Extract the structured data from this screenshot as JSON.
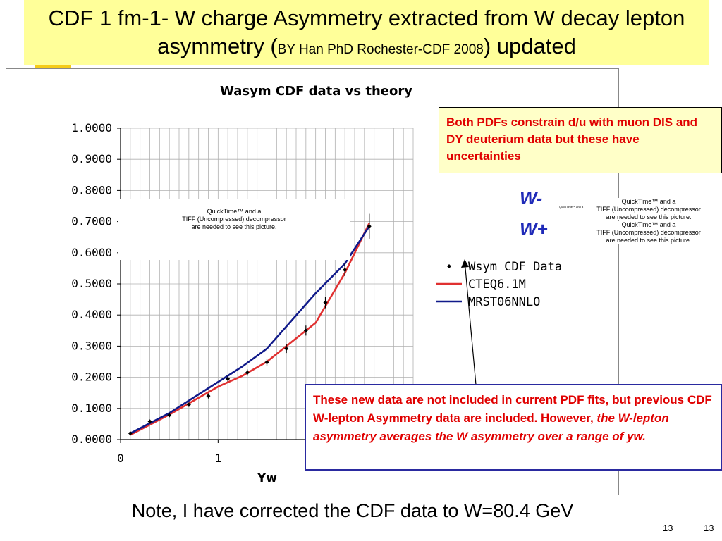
{
  "slide": {
    "title_part1": "CDF 1 fm-1- W charge Asymmetry extracted from W decay lepton asymmetry (",
    "title_small": "BY Han PhD Rochester-CDF 2008",
    "title_part2": ") updated",
    "note": "Note, I have corrected the CDF data to W=80.4 GeV",
    "page_number_left": "13",
    "page_number_right": "13",
    "w_minus_label": "W-",
    "w_plus_label": "W+",
    "small_label": "QuickTime™ and a"
  },
  "red_box": {
    "text": "Both PDFs constrain d/u with muon DIS and DY deuterium data but these have uncertainties"
  },
  "blue_box": {
    "t1": "These new data are not included in current PDF fits, but previous CDF ",
    "t2": "W-lepton",
    "t3": " Asymmetry data are included. However, ",
    "t4": "the ",
    "t5": "W-lepton",
    "t6": " asymmetry averages the W asymmetry over a range of yw."
  },
  "quicktime": {
    "line1": "QuickTime™ and a",
    "line2": "TIFF (Uncompressed) decompressor",
    "line3": "are needed to see this picture."
  },
  "quicktime_right_top": {
    "line1": "QuickTime™ and a",
    "line2": "TIFF (Uncompressed) decompressor",
    "line3": "are needed to see this picture."
  },
  "colors": {
    "data": "#000000",
    "cteq": "#e03030",
    "mrst": "#101a8a",
    "grid": "#b0b0b0"
  },
  "chart_data": {
    "type": "line",
    "title": "Wasym CDF data vs theory",
    "xlabel": "Yw",
    "ylabel": "",
    "xlim": [
      0,
      3
    ],
    "ylim": [
      0,
      1.0
    ],
    "x_ticks": [
      0,
      1
    ],
    "y_ticks": [
      "0.0000",
      "0.1000",
      "0.2000",
      "0.3000",
      "0.4000",
      "0.5000",
      "0.6000",
      "0.7000",
      "0.8000",
      "0.9000",
      "1.0000"
    ],
    "grid": true,
    "legend_position": "right",
    "series": [
      {
        "name": "Wsym CDF Data",
        "kind": "points",
        "x": [
          0.1,
          0.3,
          0.5,
          0.7,
          0.9,
          1.1,
          1.3,
          1.5,
          1.7,
          1.9,
          2.1,
          2.3,
          2.55
        ],
        "y": [
          0.02,
          0.058,
          0.078,
          0.112,
          0.14,
          0.195,
          0.215,
          0.248,
          0.292,
          0.35,
          0.44,
          0.545,
          0.685
        ],
        "err": [
          0.006,
          0.006,
          0.006,
          0.007,
          0.008,
          0.009,
          0.01,
          0.012,
          0.014,
          0.016,
          0.018,
          0.02,
          0.04
        ]
      },
      {
        "name": "CTEQ6.1M",
        "kind": "line",
        "x": [
          0.1,
          0.5,
          1.0,
          1.25,
          1.5,
          2.0,
          2.3,
          2.55
        ],
        "y": [
          0.015,
          0.08,
          0.17,
          0.205,
          0.25,
          0.375,
          0.535,
          0.695
        ]
      },
      {
        "name": "MRST06NNLO",
        "kind": "line",
        "x": [
          0.1,
          0.5,
          1.0,
          1.25,
          1.5,
          2.0,
          2.3,
          2.55
        ],
        "y": [
          0.02,
          0.085,
          0.185,
          0.235,
          0.292,
          0.47,
          0.565,
          0.685
        ]
      }
    ]
  }
}
